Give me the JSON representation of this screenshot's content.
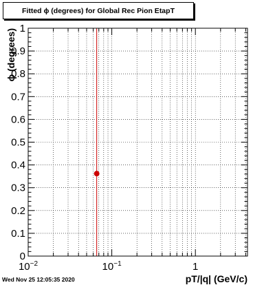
{
  "chart_data": {
    "type": "scatter",
    "title": "Fitted ϕ (degrees) for Global Rec Pion EtapT",
    "xlabel": "pT/|q| (GeV/c)",
    "ylabel": "ϕ (degrees)",
    "x_scale": "log",
    "xlim": [
      0.01,
      4.2
    ],
    "ylim": [
      0,
      1
    ],
    "x_ticks": [
      {
        "value": 0.01,
        "base": "10",
        "exp": "−2"
      },
      {
        "value": 0.1,
        "base": "10",
        "exp": "−1"
      },
      {
        "value": 1,
        "base": "1",
        "exp": ""
      }
    ],
    "y_ticks": [
      0,
      0.1,
      0.2,
      0.3,
      0.4,
      0.5,
      0.6,
      0.7,
      0.8,
      0.9,
      1
    ],
    "y_tick_labels": [
      "0",
      "0.1",
      "0.2",
      "0.3",
      "0.4",
      "0.5",
      "0.6",
      "0.7",
      "0.8",
      "0.9",
      "1"
    ],
    "grid": true,
    "points": [
      {
        "x": 0.066,
        "y": 0.362,
        "xerr": null
      }
    ],
    "vertical_line": {
      "x": 0.066,
      "color": "#cc0000"
    },
    "marker_color": "#cc0000"
  },
  "timestamp": "Wed Nov 25 12:05:35 2020"
}
